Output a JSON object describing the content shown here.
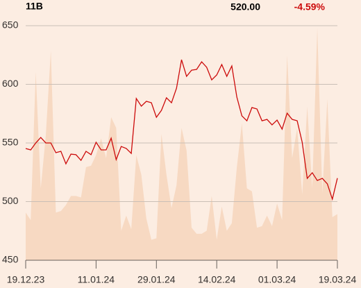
{
  "chart_data": {
    "type": "line",
    "ticker": "11B",
    "price": {
      "value": 520,
      "label": "520.00"
    },
    "change": {
      "value": -4.59,
      "label": "-4.59%"
    },
    "categories": [
      "19.12.23",
      null,
      null,
      null,
      null,
      null,
      null,
      null,
      null,
      null,
      null,
      null,
      null,
      null,
      "11.01.24",
      null,
      null,
      null,
      null,
      null,
      null,
      null,
      null,
      null,
      null,
      null,
      "29.01.24",
      null,
      null,
      null,
      null,
      null,
      null,
      null,
      null,
      null,
      null,
      null,
      "14.02.24",
      null,
      null,
      null,
      null,
      null,
      null,
      null,
      null,
      null,
      null,
      null,
      "01.03.24",
      null,
      null,
      null,
      null,
      null,
      null,
      null,
      null,
      null,
      null,
      null,
      "19.03.24"
    ],
    "series": [
      {
        "color": "#cc0a0a",
        "values": [
          545.3,
          544.1,
          550,
          554.7,
          550,
          550,
          541.7,
          542.9,
          532.2,
          540.5,
          540,
          535.2,
          542.9,
          540,
          550.6,
          544.1,
          544.1,
          554.1,
          535.8,
          547,
          545.3,
          541.1,
          587.9,
          581.4,
          585.5,
          584.3,
          571.9,
          577.8,
          588.5,
          584.3,
          596.7,
          621,
          606.8,
          612.1,
          612.7,
          619.2,
          614.5,
          603.8,
          608,
          616.9,
          606.8,
          615.7,
          589.1,
          573.1,
          568.9,
          580.2,
          579,
          568.9,
          570.1,
          565.4,
          569.5,
          561.8,
          575.4,
          570.1,
          568.9,
          550.6,
          519.8,
          524.6,
          518,
          519.8,
          515.1,
          502.1,
          520
        ]
      }
    ],
    "area": {
      "color": "#f7d9c2",
      "axis": "y2",
      "values": [
        63,
        53,
        249,
        95,
        165,
        277,
        63,
        65,
        73,
        85,
        85,
        83,
        123,
        125,
        139,
        161,
        135,
        189,
        175,
        39,
        59,
        41,
        139,
        113,
        55,
        27,
        29,
        167,
        113,
        69,
        99,
        175,
        145,
        43,
        35,
        35,
        39,
        85,
        27,
        71,
        39,
        49,
        123,
        181,
        95,
        91,
        43,
        45,
        59,
        45,
        75,
        53,
        271,
        135,
        175,
        87,
        203,
        95,
        307,
        89,
        213,
        57,
        61
      ]
    },
    "ylim": [
      450,
      650
    ],
    "yticks": [
      450,
      500,
      550,
      600,
      650
    ],
    "y2lim": [
      0,
      310
    ],
    "grid": true
  }
}
